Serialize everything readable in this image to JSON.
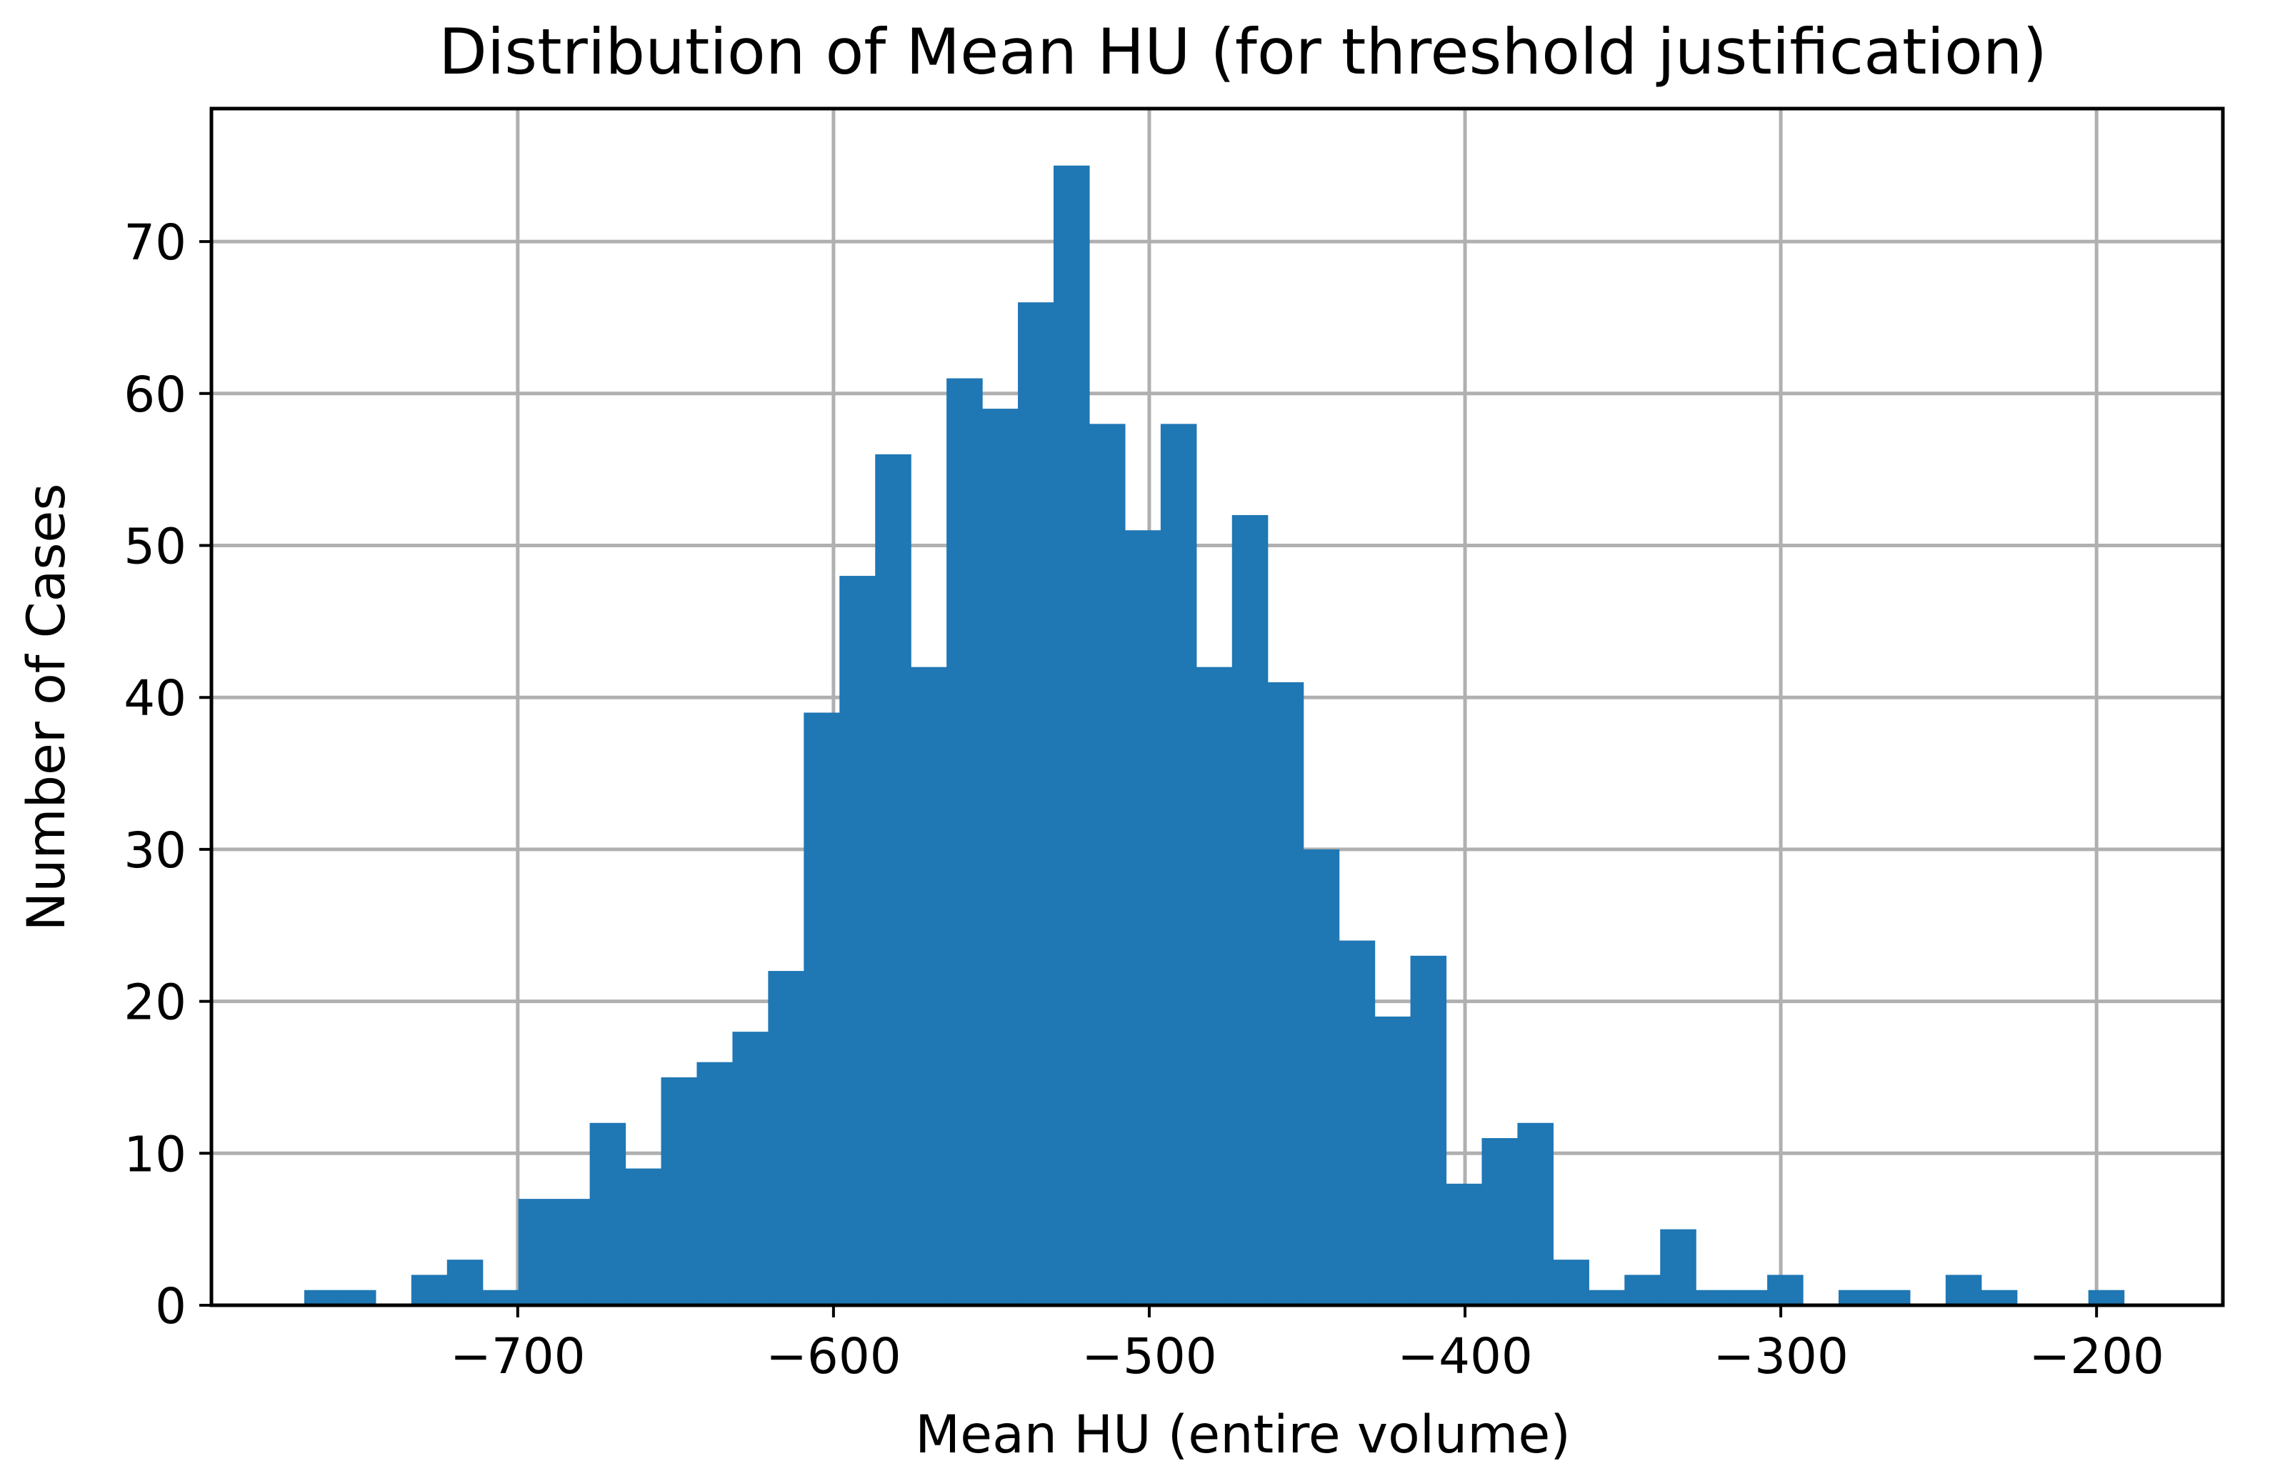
{
  "chart_data": {
    "type": "bar",
    "title": "Distribution of Mean HU (for threshold justification)",
    "xlabel": "Mean HU (entire volume)",
    "ylabel": "Number of Cases",
    "xlim": [
      -797,
      -160
    ],
    "ylim": [
      0,
      78.75
    ],
    "bin_width": 11.3,
    "x_ticks": [
      -700,
      -600,
      -500,
      -400,
      -300,
      -200
    ],
    "x_tick_labels": [
      "−700",
      "−600",
      "−500",
      "−400",
      "−300",
      "−200"
    ],
    "y_ticks": [
      0,
      10,
      20,
      30,
      40,
      50,
      60,
      70
    ],
    "y_tick_labels": [
      "0",
      "10",
      "20",
      "30",
      "40",
      "50",
      "60",
      "70"
    ],
    "grid": true,
    "bar_color": "#1f77b4",
    "bin_starts": [
      -767.6,
      -756.3,
      -745.0,
      -733.7,
      -722.4,
      -711.1,
      -699.8,
      -688.5,
      -677.2,
      -665.9,
      -654.6,
      -643.3,
      -632.0,
      -620.7,
      -609.4,
      -598.1,
      -586.8,
      -575.5,
      -564.2,
      -552.9,
      -541.6,
      -530.3,
      -519.0,
      -507.7,
      -496.4,
      -485.1,
      -473.8,
      -462.5,
      -451.2,
      -439.9,
      -428.6,
      -417.3,
      -406.0,
      -394.7,
      -383.4,
      -372.1,
      -360.8,
      -349.5,
      -338.2,
      -326.9,
      -315.6,
      -304.3,
      -293.0,
      -281.7,
      -270.4,
      -259.1,
      -247.8,
      -236.5,
      -225.2,
      -213.9,
      -202.6,
      -191.3
    ],
    "values": [
      1,
      1,
      0,
      2,
      3,
      1,
      7,
      7,
      12,
      9,
      15,
      16,
      18,
      22,
      39,
      48,
      56,
      42,
      61,
      59,
      66,
      75,
      58,
      51,
      58,
      42,
      52,
      41,
      30,
      24,
      19,
      23,
      8,
      11,
      12,
      3,
      1,
      2,
      5,
      1,
      1,
      2,
      0,
      1,
      1,
      0,
      2,
      1,
      0,
      0,
      1,
      0
    ]
  }
}
